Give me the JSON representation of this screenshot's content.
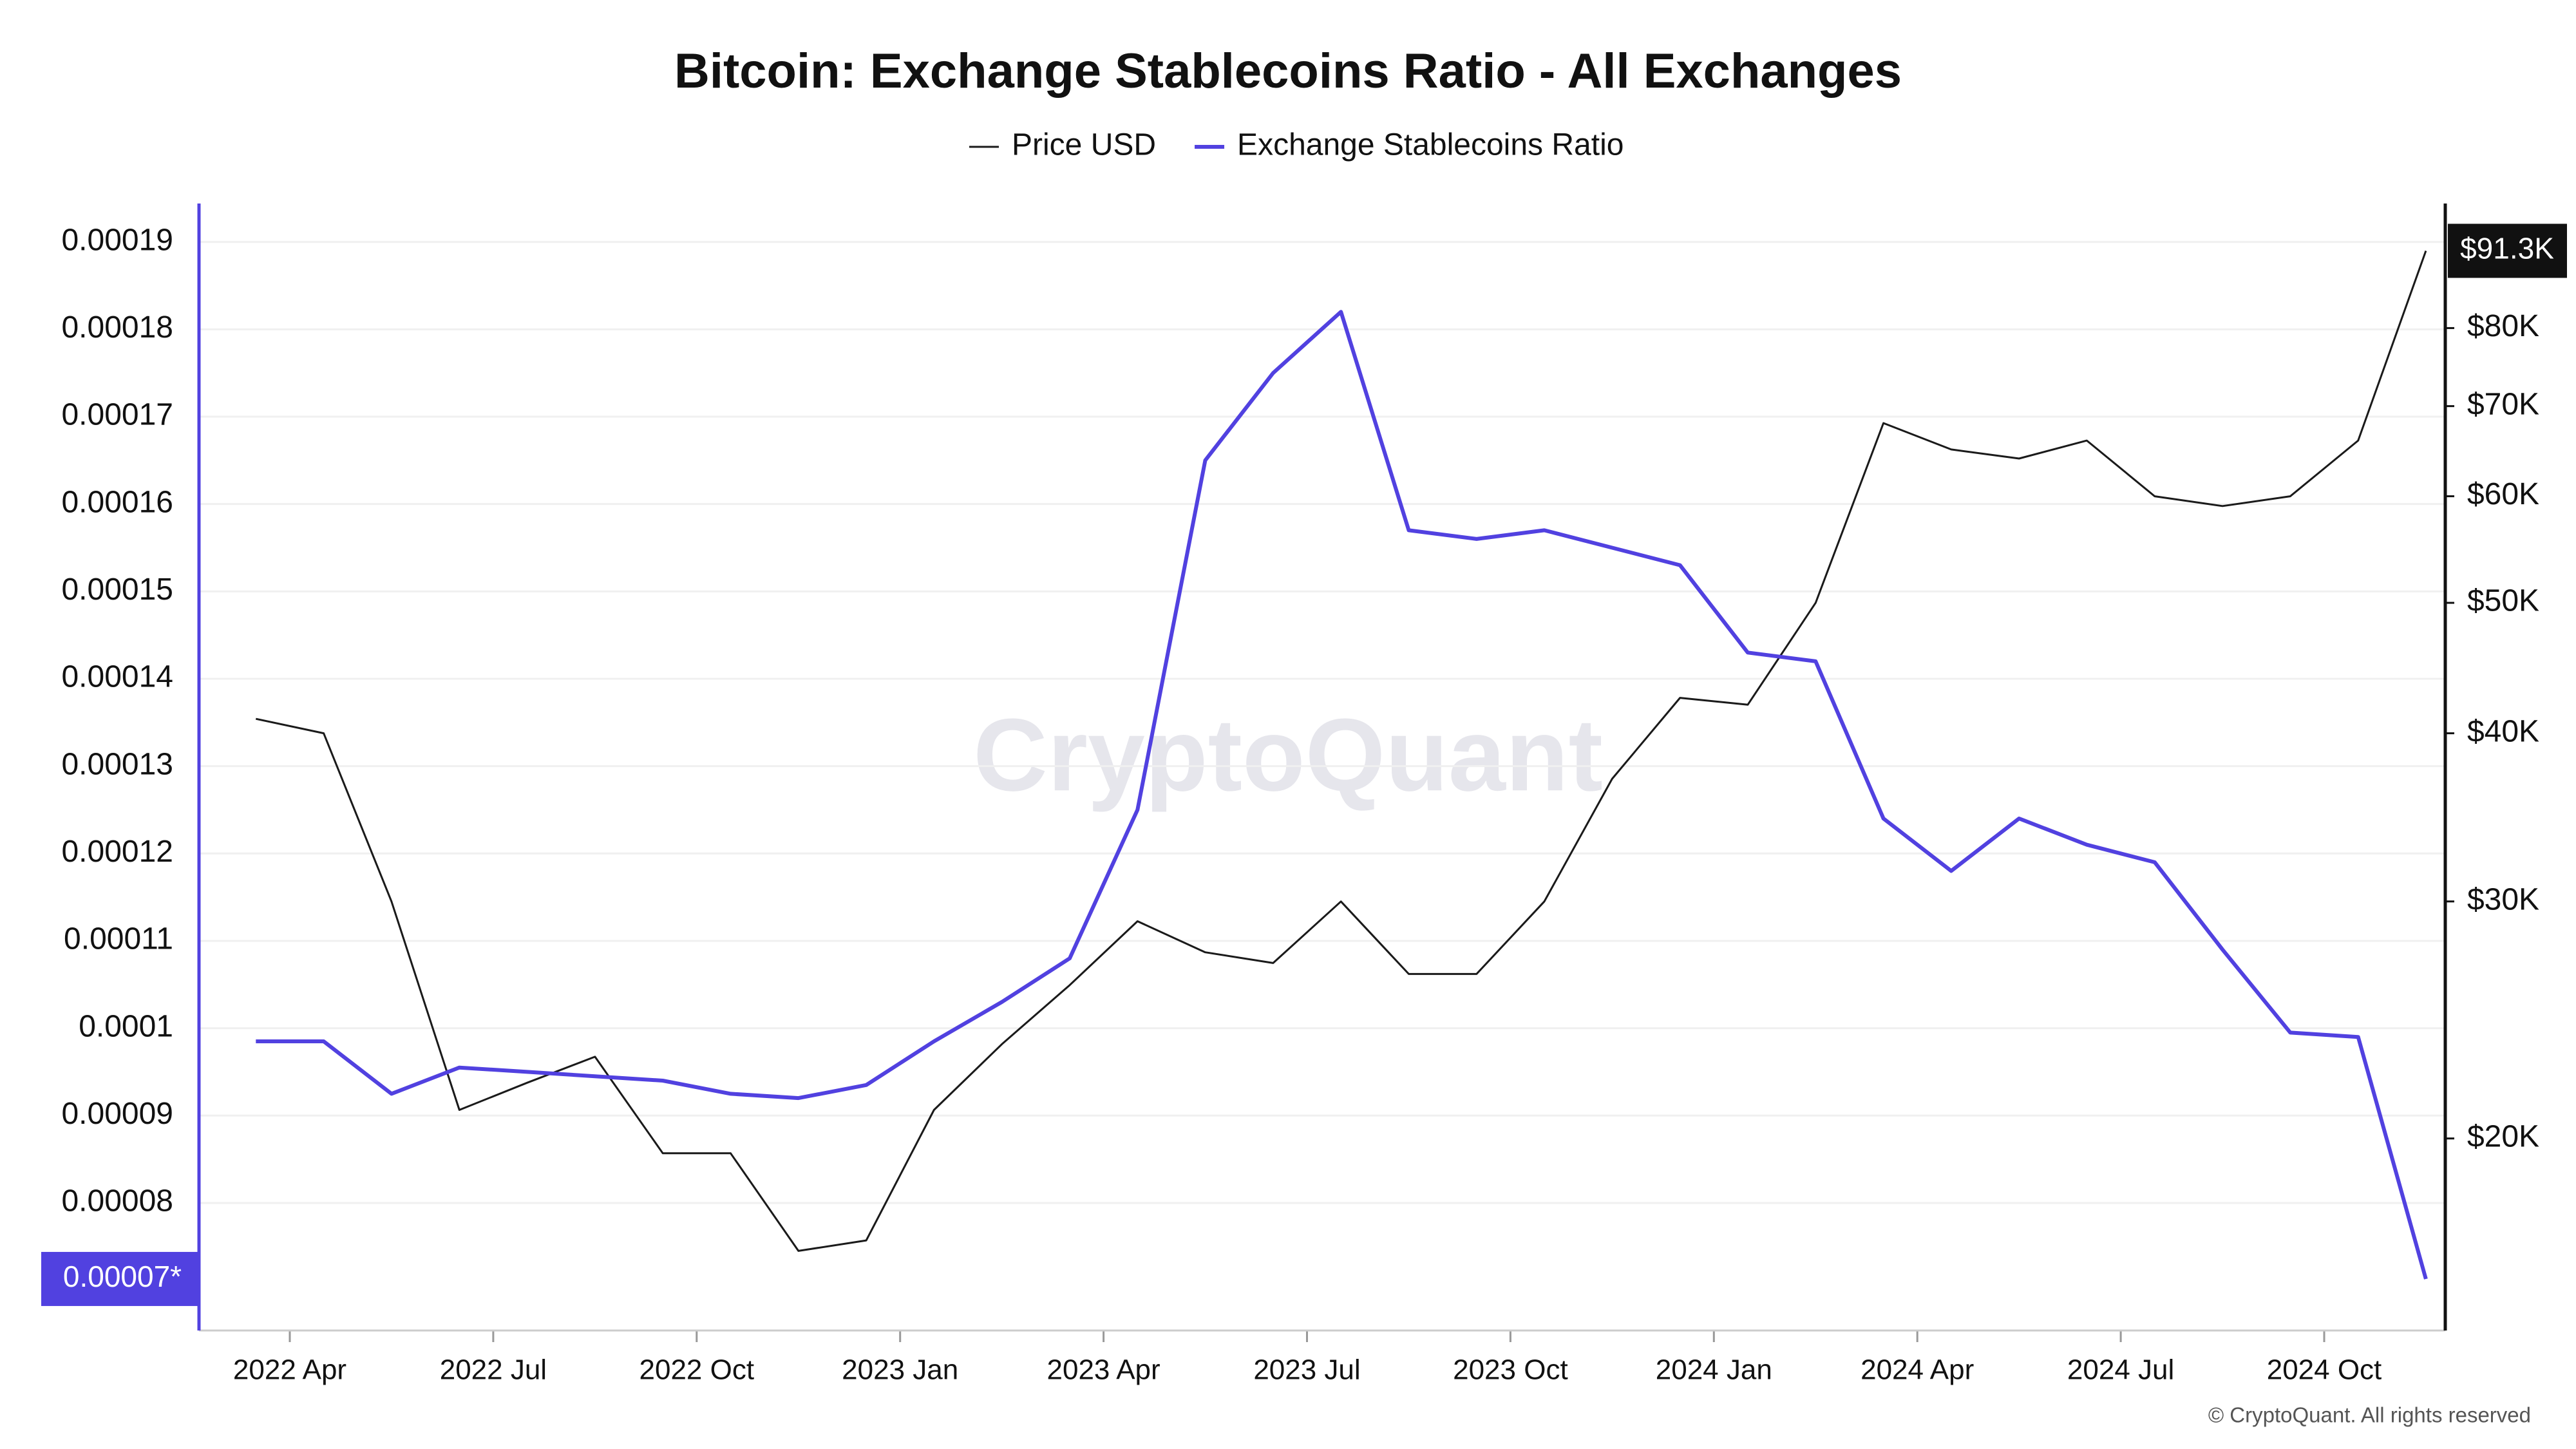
{
  "chart_data": {
    "type": "line",
    "title": "Bitcoin: Exchange Stablecoins Ratio - All Exchanges",
    "watermark": "CryptoQuant",
    "copyright": "© CryptoQuant. All rights reserved",
    "x": [
      "2022-03",
      "2022-04",
      "2022-05",
      "2022-06",
      "2022-07",
      "2022-08",
      "2022-09",
      "2022-10",
      "2022-11",
      "2022-12",
      "2023-01",
      "2023-02",
      "2023-03",
      "2023-04",
      "2023-05",
      "2023-06",
      "2023-07",
      "2023-08",
      "2023-09",
      "2023-10",
      "2023-11",
      "2023-12",
      "2024-01",
      "2024-02",
      "2024-03",
      "2024-04",
      "2024-05",
      "2024-06",
      "2024-07",
      "2024-08",
      "2024-09",
      "2024-10",
      "2024-11"
    ],
    "series": [
      {
        "name": "Price USD",
        "color": "#1a1a1a",
        "axis": "y2",
        "last_label": "$91.3K",
        "values": [
          41000,
          40000,
          30000,
          21000,
          22000,
          23000,
          19500,
          19500,
          16500,
          16800,
          21000,
          23500,
          26000,
          29000,
          27500,
          27000,
          30000,
          26500,
          26500,
          30000,
          37000,
          42500,
          42000,
          50000,
          68000,
          65000,
          64000,
          66000,
          60000,
          59000,
          60000,
          66000,
          91300
        ]
      },
      {
        "name": "Exchange Stablecoins Ratio",
        "color": "#5141e0",
        "axis": "y",
        "last_label": "0.00007*",
        "values": [
          9.85e-05,
          9.85e-05,
          9.25e-05,
          9.55e-05,
          9.5e-05,
          9.45e-05,
          9.4e-05,
          9.25e-05,
          9.2e-05,
          9.35e-05,
          9.85e-05,
          0.000103,
          0.000108,
          0.000125,
          0.000165,
          0.000175,
          0.000182,
          0.000157,
          0.000156,
          0.000157,
          0.000155,
          0.000153,
          0.000143,
          0.000142,
          0.000124,
          0.000118,
          0.000124,
          0.000121,
          0.000119,
          0.000109,
          9.95e-05,
          9.9e-05,
          7.13e-05
        ]
      }
    ],
    "xticks": [
      {
        "value": "2022-04",
        "label": "2022 Apr"
      },
      {
        "value": "2022-07",
        "label": "2022 Jul"
      },
      {
        "value": "2022-10",
        "label": "2022 Oct"
      },
      {
        "value": "2023-01",
        "label": "2023 Jan"
      },
      {
        "value": "2023-04",
        "label": "2023 Apr"
      },
      {
        "value": "2023-07",
        "label": "2023 Jul"
      },
      {
        "value": "2023-10",
        "label": "2023 Oct"
      },
      {
        "value": "2024-01",
        "label": "2024 Jan"
      },
      {
        "value": "2024-04",
        "label": "2024 Apr"
      },
      {
        "value": "2024-07",
        "label": "2024 Jul"
      },
      {
        "value": "2024-10",
        "label": "2024 Oct"
      }
    ],
    "ylim": [
      6.54e-05,
      0.0001944
    ],
    "yticks": [
      8e-05,
      9e-05,
      0.0001,
      0.00011,
      0.00012,
      0.00013,
      0.00014,
      0.00015,
      0.00016,
      0.00017,
      0.00018,
      0.00019
    ],
    "y2lim": [
      14400,
      99000
    ],
    "y2log": true,
    "y2ticks": [
      {
        "value": 20000,
        "label": "$20K"
      },
      {
        "value": 30000,
        "label": "$30K"
      },
      {
        "value": 40000,
        "label": "$40K"
      },
      {
        "value": 50000,
        "label": "$50K"
      },
      {
        "value": 60000,
        "label": "$60K"
      },
      {
        "value": 70000,
        "label": "$70K"
      },
      {
        "value": 80000,
        "label": "$80K"
      }
    ],
    "grid": true
  }
}
